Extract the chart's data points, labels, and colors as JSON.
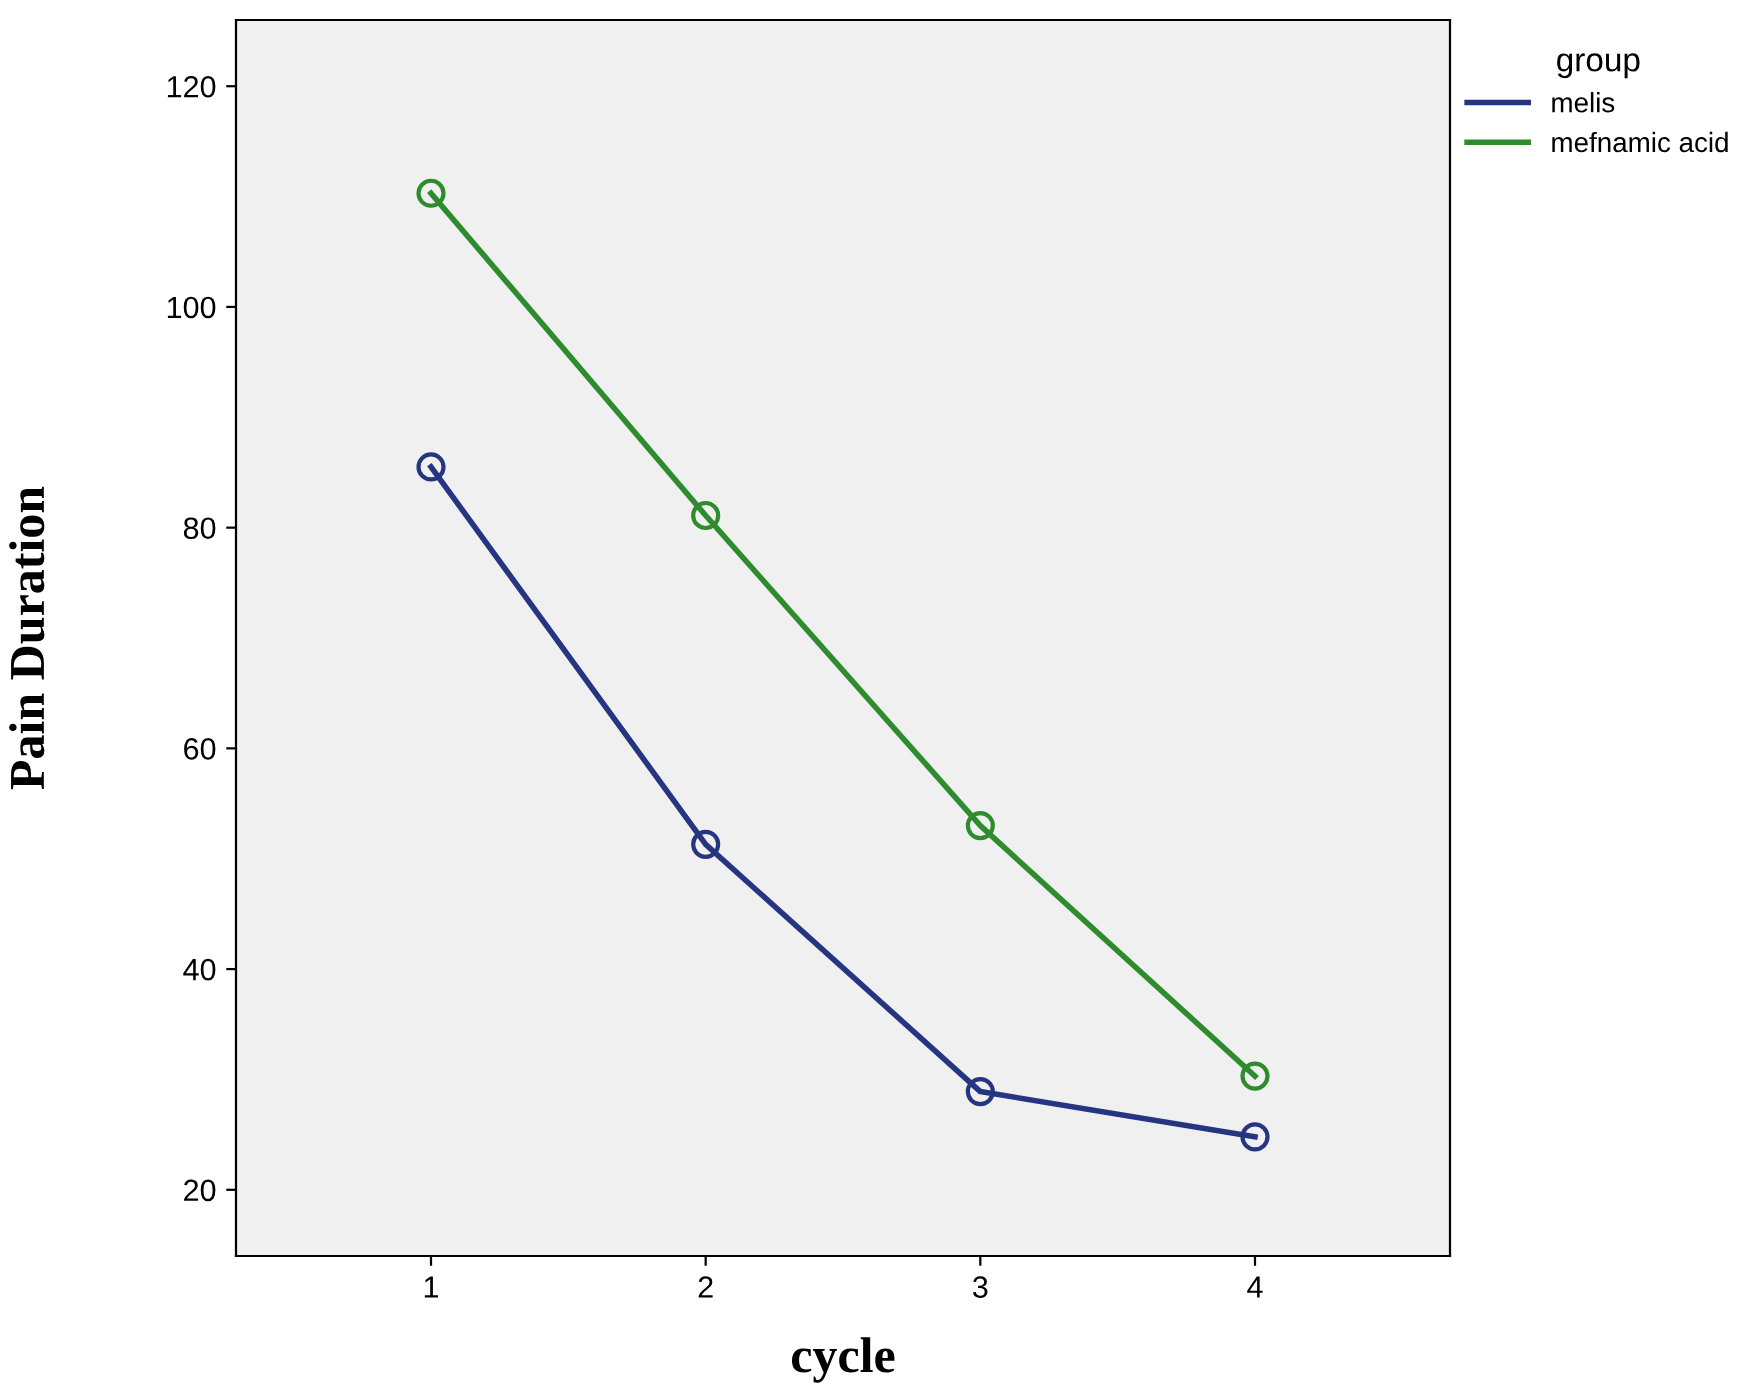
{
  "chart_data": {
    "type": "line",
    "xlabel": "cycle",
    "ylabel": "Pain Duration",
    "legend_title": "group",
    "categories": [
      "1",
      "2",
      "3",
      "4"
    ],
    "series": [
      {
        "name": "melis",
        "color": "#26357f",
        "values": [
          85.5,
          51.3,
          28.9,
          24.8
        ]
      },
      {
        "name": "mefnamic acid",
        "color": "#2e8b2e",
        "values": [
          110.3,
          81.1,
          53.0,
          30.3
        ]
      }
    ],
    "ylim": [
      14,
      126
    ],
    "yticks": [
      20,
      40,
      60,
      80,
      100,
      120
    ],
    "grid": false,
    "legend": "top right",
    "marker": "circle",
    "line_style": "solid"
  }
}
